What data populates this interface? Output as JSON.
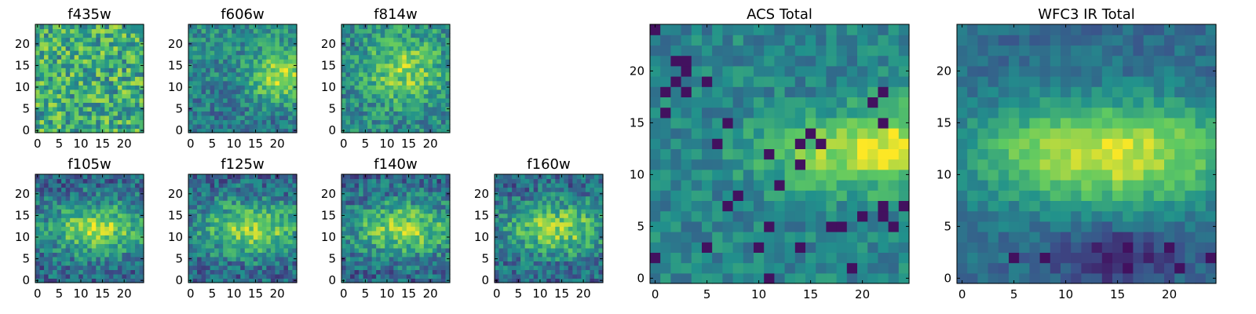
{
  "chart_data": [
    {
      "type": "heatmap",
      "title": "f435w",
      "grid_size": 25,
      "xlim": [
        0,
        24
      ],
      "ylim": [
        0,
        24
      ],
      "xticks": [
        "0",
        "5",
        "10",
        "15",
        "20"
      ],
      "yticks": [
        "0",
        "5",
        "10",
        "15",
        "20"
      ],
      "pattern": "noise-high"
    },
    {
      "type": "heatmap",
      "title": "f606w",
      "grid_size": 25,
      "xlim": [
        0,
        24
      ],
      "ylim": [
        0,
        24
      ],
      "xticks": [
        "0",
        "5",
        "10",
        "15",
        "20"
      ],
      "yticks": [
        "0",
        "5",
        "10",
        "15",
        "20"
      ],
      "pattern": "blob-right"
    },
    {
      "type": "heatmap",
      "title": "f814w",
      "grid_size": 25,
      "xlim": [
        0,
        24
      ],
      "ylim": [
        0,
        24
      ],
      "xticks": [
        "0",
        "5",
        "10",
        "15",
        "20"
      ],
      "yticks": [
        "0",
        "5",
        "10",
        "15",
        "20"
      ],
      "pattern": "blob-center"
    },
    {
      "type": "heatmap",
      "title": "f105w",
      "grid_size": 25,
      "xlim": [
        0,
        24
      ],
      "ylim": [
        0,
        24
      ],
      "xticks": [
        "0",
        "5",
        "10",
        "15",
        "20"
      ],
      "yticks": [
        "0",
        "5",
        "10",
        "15",
        "20"
      ],
      "pattern": "band-middle"
    },
    {
      "type": "heatmap",
      "title": "f125w",
      "grid_size": 25,
      "xlim": [
        0,
        24
      ],
      "ylim": [
        0,
        24
      ],
      "xticks": [
        "0",
        "5",
        "10",
        "15",
        "20"
      ],
      "yticks": [
        "0",
        "5",
        "10",
        "15",
        "20"
      ],
      "pattern": "band-middle"
    },
    {
      "type": "heatmap",
      "title": "f140w",
      "grid_size": 25,
      "xlim": [
        0,
        24
      ],
      "ylim": [
        0,
        24
      ],
      "xticks": [
        "0",
        "5",
        "10",
        "15",
        "20"
      ],
      "yticks": [
        "0",
        "5",
        "10",
        "15",
        "20"
      ],
      "pattern": "band-middle"
    },
    {
      "type": "heatmap",
      "title": "f160w",
      "grid_size": 25,
      "xlim": [
        0,
        24
      ],
      "ylim": [
        0,
        24
      ],
      "xticks": [
        "0",
        "5",
        "10",
        "15",
        "20"
      ],
      "yticks": [
        "0",
        "5",
        "10",
        "15",
        "20"
      ],
      "pattern": "band-middle"
    },
    {
      "type": "heatmap",
      "title": "ACS Total",
      "grid_size": 25,
      "xlim": [
        0,
        24
      ],
      "ylim": [
        0,
        24
      ],
      "xticks": [
        "0",
        "5",
        "10",
        "15",
        "20"
      ],
      "yticks": [
        "0",
        "5",
        "10",
        "15",
        "20"
      ],
      "pattern": "acs"
    },
    {
      "type": "heatmap",
      "title": "WFC3 IR Total",
      "grid_size": 25,
      "xlim": [
        0,
        24
      ],
      "ylim": [
        0,
        24
      ],
      "xticks": [
        "0",
        "5",
        "10",
        "15",
        "20"
      ],
      "yticks": [
        "0",
        "5",
        "10",
        "15",
        "20"
      ],
      "pattern": "wfc3"
    }
  ],
  "colormap": [
    "#440154",
    "#3b528b",
    "#21918c",
    "#5ec962",
    "#fde725"
  ]
}
